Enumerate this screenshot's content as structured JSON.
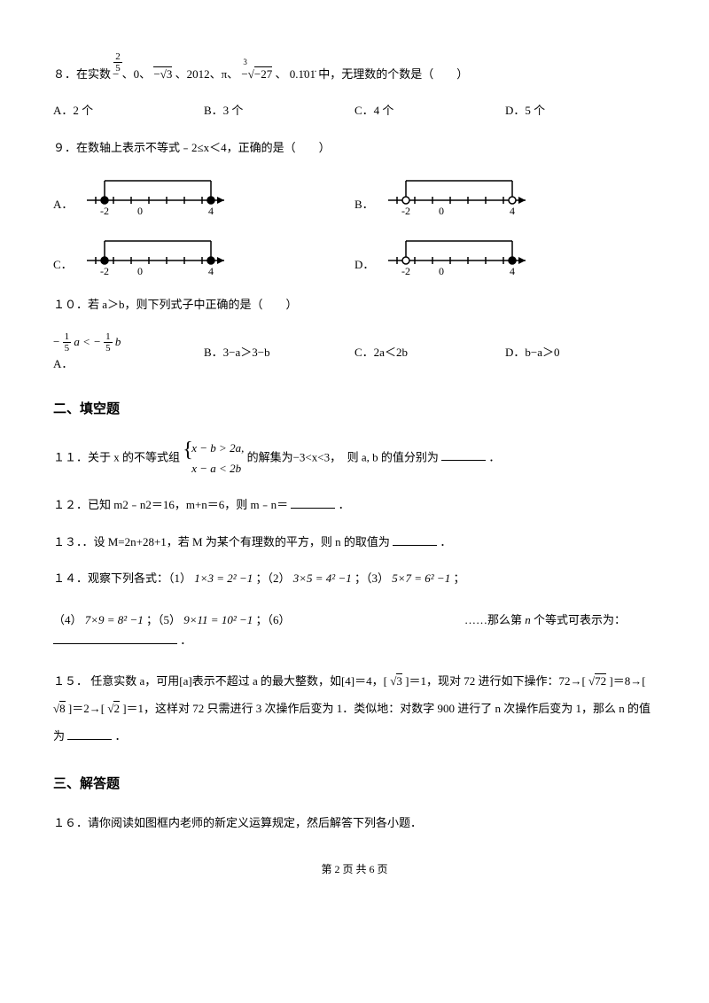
{
  "q8": {
    "stem_prefix": "８．在实数",
    "exp1_neg": "−",
    "exp1_frac_num": "2",
    "exp1_frac_den": "5",
    "seq1": "、0、",
    "neg_sqrt3": "−√3",
    "seq2": "、2012、π、",
    "neg_cbrt_label": "−",
    "cbrt_root": "3",
    "cbrt_in": "−27",
    "seq3": "、",
    "rep_decimal": "0.1̇01̇",
    "stem_suffix": "中，无理数的个数是（　　）",
    "optA": "A．2 个",
    "optB": "B．3 个",
    "optC": "C．4 个",
    "optD": "D．5 个"
  },
  "q9": {
    "stem": "９．在数轴上表示不等式﹣2≤x＜4，正确的是（　　）",
    "diagrams": {
      "A": {
        "left_closed": true,
        "right_closed": true,
        "ticks": [
          "-2",
          "0",
          "4"
        ]
      },
      "B": {
        "left_closed": false,
        "right_closed": false,
        "ticks": [
          "-2",
          "0",
          "4"
        ]
      },
      "C": {
        "left_closed": true,
        "right_closed": true,
        "ticks": [
          "-2",
          "0",
          "4"
        ]
      },
      "D": {
        "left_closed": false,
        "right_closed": true,
        "ticks": [
          "-2",
          "0",
          "4"
        ]
      }
    },
    "labelA": "A．",
    "labelB": "B．",
    "labelC": "C．",
    "labelD": "D．",
    "colors": {
      "line": "#000000",
      "fill": "#000000",
      "open": "#ffffff"
    }
  },
  "q10": {
    "stem": "１０．若 a＞b，则下列式子中正确的是（　　）",
    "optA_pre": "−",
    "optA_frac_num": "1",
    "optA_frac_den": "5",
    "optA_mid": "a < −",
    "optA_after": "b",
    "optA_label": "A．",
    "optB": "B．3−a＞3−b",
    "optC": "C．2a＜2b",
    "optD": "D．b−a＞0"
  },
  "section2": "二、填空题",
  "q11": {
    "prefix": "１１．关于 x 的不等式组",
    "brace_top": "x − b > 2a,",
    "brace_bot": "x − a < 2b",
    "suffix": "的解集为−3<x<3，　则 a, b 的值分别为",
    "period": "．"
  },
  "q12": {
    "text": "１２．已知 m2﹣n2＝16，m+n＝6，则 m﹣n＝",
    "period": "．"
  },
  "q13": {
    "text": "１３．．设 M=2n+28+1，若 M 为某个有理数的平方，则 n 的取值为",
    "period": "．"
  },
  "q14": {
    "prefix": "１４．观察下列各式：（1）",
    "eq1": "1×3 = 2² −1",
    "mid1": "；（2）",
    "eq2": "3×5 = 4² −1",
    "mid2": "；（3）",
    "eq3": "5×7 = 6² −1",
    "mid3": "；",
    "line2_p1": "（4）",
    "eq4": "7×9 = 8² −1",
    "line2_p2": "；（5）",
    "eq5": "9×11 = 10² −1",
    "line2_p3": "；（6）",
    "dots": "……那么第",
    "nvar": "n",
    "suffix": "个等式可表示为：",
    "period": "．"
  },
  "q15": {
    "p1": "１５． 任意实数 a，可用[a]表示不超过 a 的最大整数，如[4]＝4，[",
    "sqrt3": "√3",
    "p2": "]＝1，现对 72 进行如下操作：72→[",
    "sqrt72": "√72",
    "p3": "]＝8→[",
    "sqrt8": "√8",
    "p4": "]＝2→[",
    "sqrt2": "√2",
    "p5": "]＝1，这样对 72 只需进行 3 次操作后变为 1．类似地：对数字 900 进行了 n 次操作后变为 1，那么 n 的值为",
    "period": "．"
  },
  "section3": "三、解答题",
  "q16": {
    "text": "１６．请你阅读如图框内老师的新定义运算规定，然后解答下列各小题．"
  },
  "footer": "第 2 页 共 6 页"
}
